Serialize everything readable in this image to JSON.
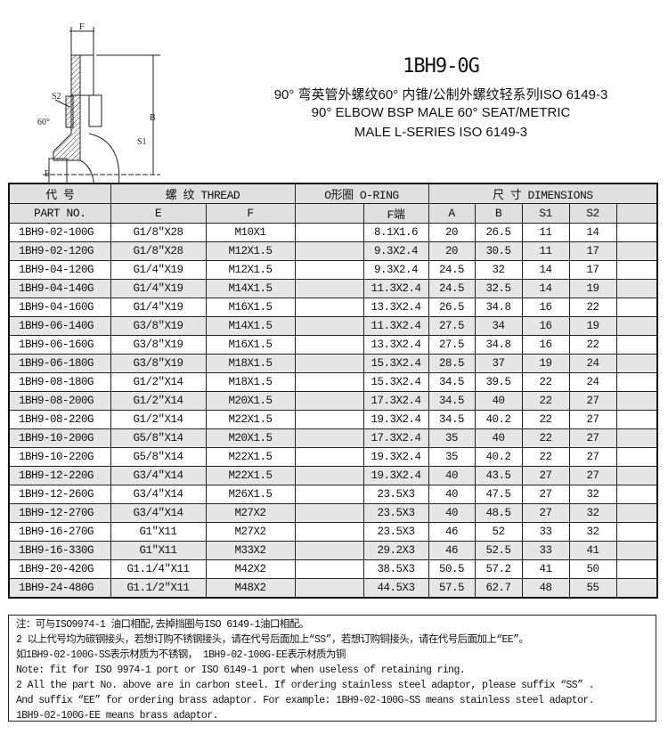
{
  "drawing": {
    "labels": {
      "f": "F",
      "s2": "S2",
      "b": "B",
      "angle": "60°",
      "e": "E",
      "s1": "S1",
      "a": "A"
    }
  },
  "header": {
    "code": "1BH9-0G",
    "title_cn": "90° 弯英管外螺纹60° 内锥/公制外螺纹轻系列ISO 6149-3",
    "title_en_1": "90° ELBOW BSP MALE 60°  SEAT/METRIC",
    "title_en_2": "MALE L-SERIES ISO 6149-3"
  },
  "table": {
    "group_headers": {
      "code": "代  号",
      "thread": "螺  纹    THREAD",
      "oring": "O形圈 O-RING",
      "dims": "尺  寸     DIMENSIONS"
    },
    "columns": {
      "part": "PART  NO.",
      "e": "E",
      "f": "F",
      "oring_blank": "",
      "f_end": "F端",
      "a": "A",
      "b": "B",
      "s1": "S1",
      "s2": "S2"
    },
    "rows": [
      [
        "1BH9-02-100G",
        "G1/8″X28",
        "M10X1",
        "8.1X1.6",
        "20",
        "26.5",
        "11",
        "14"
      ],
      [
        "1BH9-02-120G",
        "G1/8″X28",
        "M12X1.5",
        "9.3X2.4",
        "20",
        "30.5",
        "11",
        "17"
      ],
      [
        "1BH9-04-120G",
        "G1/4″X19",
        "M12X1.5",
        "9.3X2.4",
        "24.5",
        "32",
        "14",
        "17"
      ],
      [
        "1BH9-04-140G",
        "G1/4″X19",
        "M14X1.5",
        "11.3X2.4",
        "24.5",
        "32.5",
        "14",
        "19"
      ],
      [
        "1BH9-04-160G",
        "G1/4″X19",
        "M16X1.5",
        "13.3X2.4",
        "26.5",
        "34.8",
        "16",
        "22"
      ],
      [
        "1BH9-06-140G",
        "G3/8″X19",
        "M14X1.5",
        "11.3X2.4",
        "27.5",
        "34",
        "16",
        "19"
      ],
      [
        "1BH9-06-160G",
        "G3/8″X19",
        "M16X1.5",
        "13.3X2.4",
        "27.5",
        "34.8",
        "16",
        "22"
      ],
      [
        "1BH9-06-180G",
        "G3/8″X19",
        "M18X1.5",
        "15.3X2.4",
        "28.5",
        "37",
        "19",
        "24"
      ],
      [
        "1BH9-08-180G",
        "G1/2″X14",
        "M18X1.5",
        "15.3X2.4",
        "34.5",
        "39.5",
        "22",
        "24"
      ],
      [
        "1BH9-08-200G",
        "G1/2″X14",
        "M20X1.5",
        "17.3X2.4",
        "34.5",
        "40",
        "22",
        "27"
      ],
      [
        "1BH9-08-220G",
        "G1/2″X14",
        "M22X1.5",
        "19.3X2.4",
        "34.5",
        "40.2",
        "22",
        "27"
      ],
      [
        "1BH9-10-200G",
        "G5/8″X14",
        "M20X1.5",
        "17.3X2.4",
        "35",
        "40",
        "22",
        "27"
      ],
      [
        "1BH9-10-220G",
        "G5/8″X14",
        "M22X1.5",
        "19.3X2.4",
        "35",
        "40.2",
        "22",
        "27"
      ],
      [
        "1BH9-12-220G",
        "G3/4″X14",
        "M22X1.5",
        "19.3X2.4",
        "40",
        "43.5",
        "27",
        "27"
      ],
      [
        "1BH9-12-260G",
        "G3/4″X14",
        "M26X1.5",
        "23.5X3",
        "40",
        "47.5",
        "27",
        "32"
      ],
      [
        "1BH9-12-270G",
        "G3/4″X14",
        "M27X2",
        "23.5X3",
        "40",
        "48.5",
        "27",
        "32"
      ],
      [
        "1BH9-16-270G",
        "G1″X11",
        "M27X2",
        "23.5X3",
        "46",
        "52",
        "33",
        "32"
      ],
      [
        "1BH9-16-330G",
        "G1″X11",
        "M33X2",
        "29.2X3",
        "46",
        "52.5",
        "33",
        "41"
      ],
      [
        "1BH9-20-420G",
        "G1.1/4″X11",
        "M42X2",
        "38.5X3",
        "50.5",
        "57.2",
        "41",
        "50"
      ],
      [
        "1BH9-24-480G",
        "G1.1/2″X11",
        "M48X2",
        "44.5X3",
        "57.5",
        "62.7",
        "48",
        "55"
      ]
    ]
  },
  "notes": [
    "注：可与ISO9974-1 油口相配,去掉挡圈与ISO 6149-1油口相配。",
    "2 以上代号均为碳钢接头，若想订购不锈钢接头，请在代号后面加上“SS”，若想订购铜接头，请在代号后面加上“EE”。",
    "如1BH9-02-100G-SS表示材质为不锈钢， 1BH9-02-100G-EE表示材质为铜",
    "Note: fit for ISO 9974-1 port or ISO 6149-1 port when useless of retaining ring.",
    "2 All the part No. above are in carbon steel. If ordering stainless steel adaptor, please suffix “SS” .",
    "And suffix “EE” for ordering brass adaptor. For example: 1BH9-02-100G-SS  means stainless steel adaptor.",
    "1BH9-02-100G-EE means brass adaptor."
  ]
}
